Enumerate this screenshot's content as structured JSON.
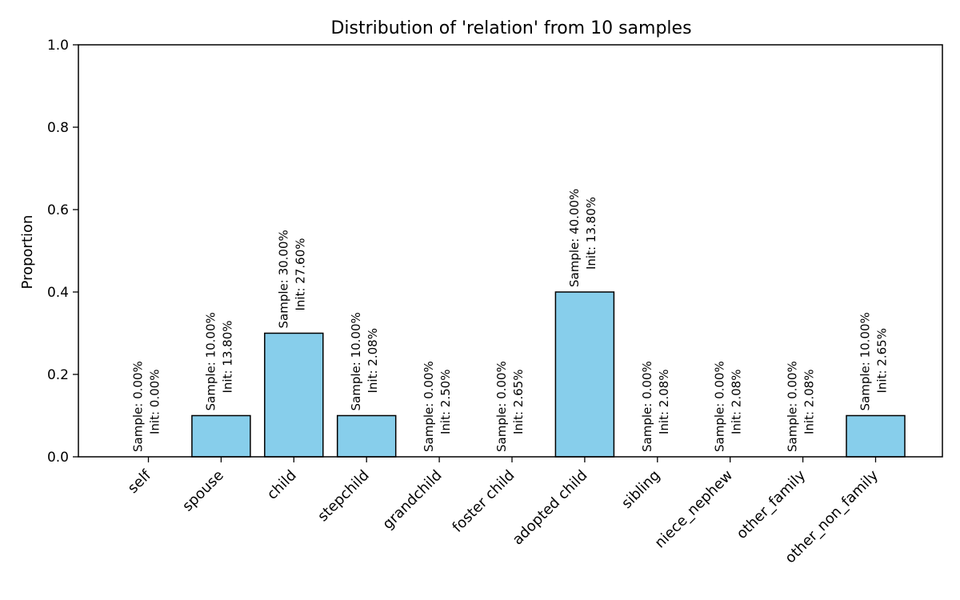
{
  "chart_data": {
    "type": "bar",
    "title": "Distribution of 'relation' from 10 samples",
    "xlabel": "",
    "ylabel": "Proportion",
    "ylim": [
      0,
      1.0
    ],
    "yticks": [
      0.0,
      0.2,
      0.4,
      0.6,
      0.8,
      1.0
    ],
    "ytick_labels": [
      "0.0",
      "0.2",
      "0.4",
      "0.6",
      "0.8",
      "1.0"
    ],
    "grid": false,
    "bar_color": "#87ceeb",
    "edge_color": "#000000",
    "categories": [
      "self",
      "spouse",
      "child",
      "stepchild",
      "grandchild",
      "foster child",
      "adopted child",
      "sibling",
      "niece_nephew",
      "other_family",
      "other_non_family"
    ],
    "values": [
      0.0,
      0.1,
      0.3,
      0.1,
      0.0,
      0.0,
      0.4,
      0.0,
      0.0,
      0.0,
      0.1
    ],
    "annotations": [
      {
        "sample": "Sample: 0.00%",
        "init": "Init: 0.00%"
      },
      {
        "sample": "Sample: 10.00%",
        "init": "Init: 13.80%"
      },
      {
        "sample": "Sample: 30.00%",
        "init": "Init: 27.60%"
      },
      {
        "sample": "Sample: 10.00%",
        "init": "Init: 2.08%"
      },
      {
        "sample": "Sample: 0.00%",
        "init": "Init: 2.50%"
      },
      {
        "sample": "Sample: 0.00%",
        "init": "Init: 2.65%"
      },
      {
        "sample": "Sample: 40.00%",
        "init": "Init: 13.80%"
      },
      {
        "sample": "Sample: 0.00%",
        "init": "Init: 2.08%"
      },
      {
        "sample": "Sample: 0.00%",
        "init": "Init: 2.08%"
      },
      {
        "sample": "Sample: 0.00%",
        "init": "Init: 2.08%"
      },
      {
        "sample": "Sample: 10.00%",
        "init": "Init: 2.65%"
      }
    ]
  }
}
